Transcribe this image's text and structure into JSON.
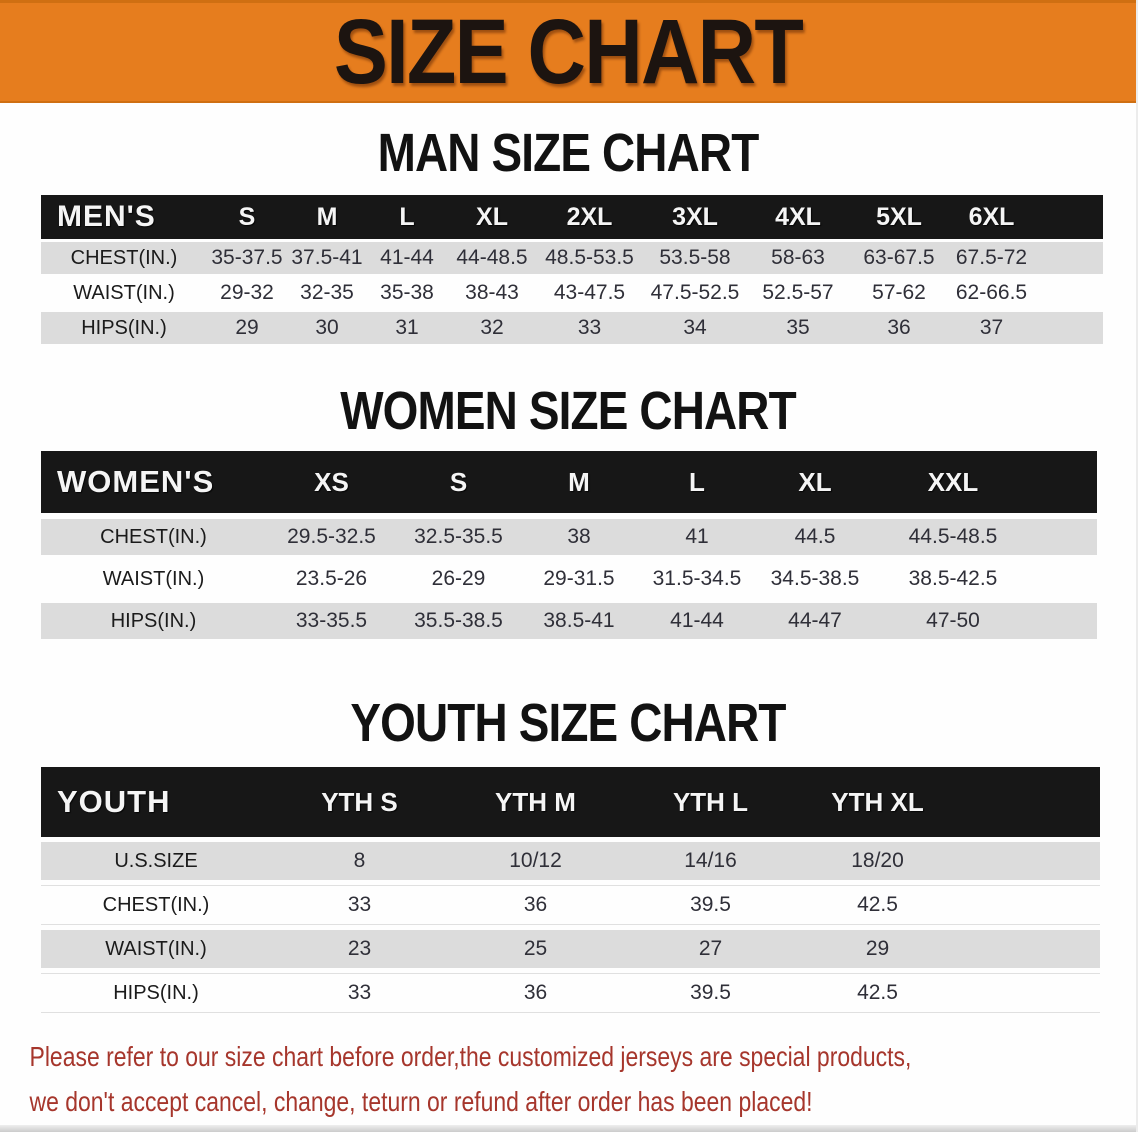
{
  "banner": {
    "title": "SIZE CHART"
  },
  "sections": {
    "men_title": "MAN SIZE CHART",
    "women_title": "WOMEN SIZE CHART",
    "youth_title": "YOUTH SIZE CHART"
  },
  "tables": {
    "men": {
      "group_label": "MEN'S",
      "columns": [
        "S",
        "M",
        "L",
        "XL",
        "2XL",
        "3XL",
        "4XL",
        "5XL",
        "6XL"
      ],
      "rows": [
        {
          "label": "CHEST(IN.)",
          "values": [
            "35-37.5",
            "37.5-41",
            "41-44",
            "44-48.5",
            "48.5-53.5",
            "53.5-58",
            "58-63",
            "63-67.5",
            "67.5-72"
          ]
        },
        {
          "label": "WAIST(IN.)",
          "values": [
            "29-32",
            "32-35",
            "35-38",
            "38-43",
            "43-47.5",
            "47.5-52.5",
            "52.5-57",
            "57-62",
            "62-66.5"
          ]
        },
        {
          "label": "HIPS(IN.)",
          "values": [
            "29",
            "30",
            "31",
            "32",
            "33",
            "34",
            "35",
            "36",
            "37"
          ]
        }
      ]
    },
    "women": {
      "group_label": "WOMEN'S",
      "columns": [
        "XS",
        "S",
        "M",
        "L",
        "XL",
        "XXL"
      ],
      "rows": [
        {
          "label": "CHEST(IN.)",
          "values": [
            "29.5-32.5",
            "32.5-35.5",
            "38",
            "41",
            "44.5",
            "44.5-48.5"
          ]
        },
        {
          "label": "WAIST(IN.)",
          "values": [
            "23.5-26",
            "26-29",
            "29-31.5",
            "31.5-34.5",
            "34.5-38.5",
            "38.5-42.5"
          ]
        },
        {
          "label": "HIPS(IN.)",
          "values": [
            "33-35.5",
            "35.5-38.5",
            "38.5-41",
            "41-44",
            "44-47",
            "47-50"
          ]
        }
      ]
    },
    "youth": {
      "group_label": "YOUTH",
      "columns": [
        "YTH S",
        "YTH M",
        "YTH L",
        "YTH XL"
      ],
      "rows": [
        {
          "label": "U.S.SIZE",
          "values": [
            "8",
            "10/12",
            "14/16",
            "18/20"
          ]
        },
        {
          "label": "CHEST(IN.)",
          "values": [
            "33",
            "36",
            "39.5",
            "42.5"
          ]
        },
        {
          "label": "WAIST(IN.)",
          "values": [
            "23",
            "25",
            "27",
            "29"
          ]
        },
        {
          "label": "HIPS(IN.)",
          "values": [
            "33",
            "36",
            "39.5",
            "42.5"
          ]
        }
      ]
    }
  },
  "footer": {
    "line1": "Please refer to our size chart before order,the customized jerseys are special products,",
    "line2": "we don't accept cancel, change, teturn or refund after order has been placed!"
  },
  "colors": {
    "banner_orange": "#e67d1e",
    "banner_border": "#cf6f12",
    "header_black": "#171717",
    "row_gray": "#dcdcdc",
    "footer_red": "#a6362c"
  }
}
